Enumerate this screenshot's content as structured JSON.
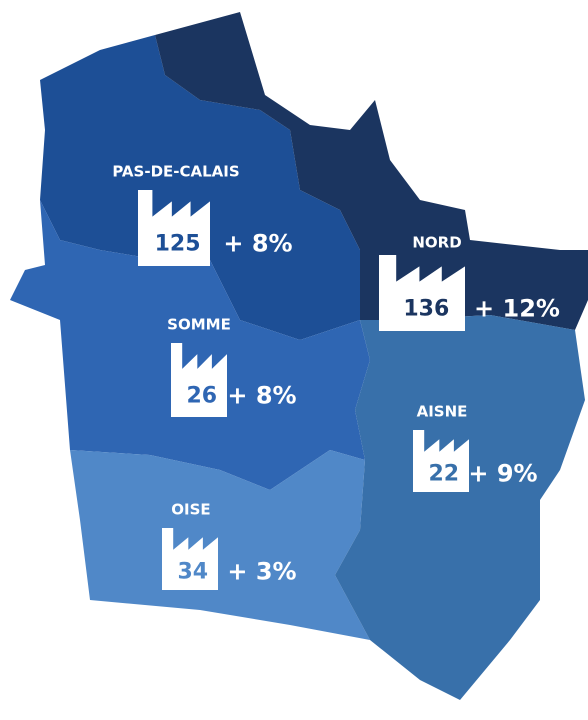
{
  "regions": [
    {
      "name": "PAS-DE-CALAIS",
      "count": 125,
      "change": "+ 8%"
    },
    {
      "name": "NORD",
      "count": 136,
      "change": "+ 12%"
    },
    {
      "name": "SOMME",
      "count": 26,
      "change": "+ 8%"
    },
    {
      "name": "AISNE",
      "count": 22,
      "change": "+ 9%"
    },
    {
      "name": "OISE",
      "count": 34,
      "change": "+ 3%"
    }
  ]
}
